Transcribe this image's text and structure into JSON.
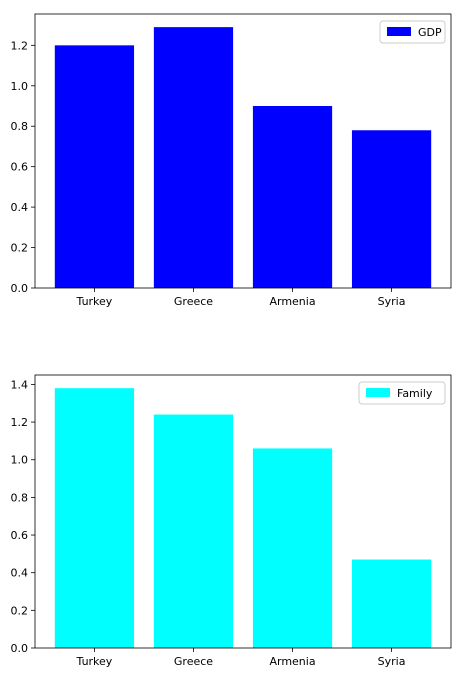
{
  "chart_data": [
    {
      "type": "bar",
      "categories": [
        "Turkey",
        "Greece",
        "Armenia",
        "Syria"
      ],
      "series": [
        {
          "name": "GDP",
          "values": [
            1.2,
            1.29,
            0.9,
            0.78
          ]
        }
      ],
      "yticks": [
        "0.0",
        "0.2",
        "0.4",
        "0.6",
        "0.8",
        "1.0",
        "1.2"
      ],
      "ylim": [
        0,
        1.355
      ],
      "color": "#0000ff",
      "legend": "top-right",
      "grid": false
    },
    {
      "type": "bar",
      "categories": [
        "Turkey",
        "Greece",
        "Armenia",
        "Syria"
      ],
      "series": [
        {
          "name": "Family",
          "values": [
            1.38,
            1.24,
            1.06,
            0.47
          ]
        }
      ],
      "yticks": [
        "0.0",
        "0.2",
        "0.4",
        "0.6",
        "0.8",
        "1.0",
        "1.2",
        "1.4"
      ],
      "ylim": [
        0,
        1.45
      ],
      "color": "#00ffff",
      "legend": "top-right",
      "grid": false
    }
  ]
}
